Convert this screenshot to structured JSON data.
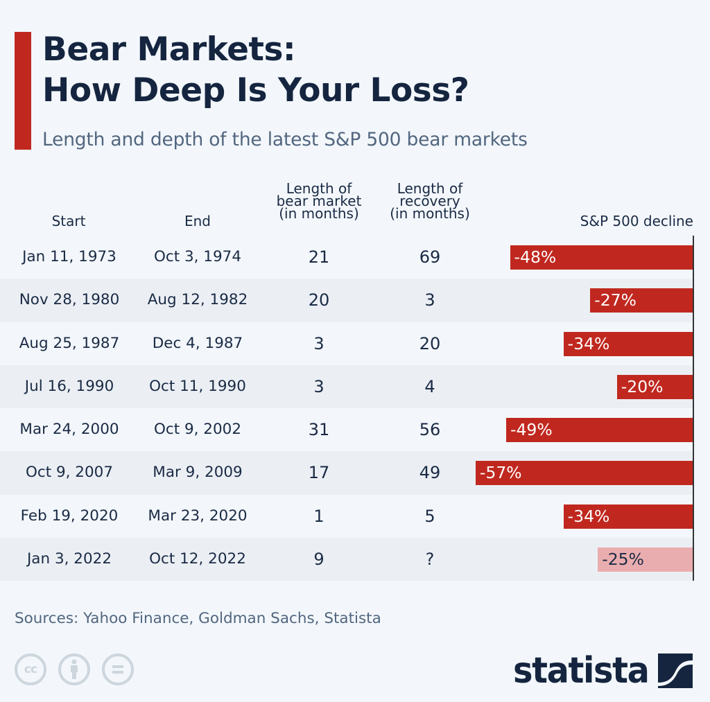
{
  "header": {
    "title_line1": "Bear Markets:",
    "title_line2": "How Deep Is Your Loss?",
    "subtitle": "Length and depth of the latest S&P 500 bear markets",
    "accent_color": "#c0281f"
  },
  "columns": {
    "start": "Start",
    "end": "End",
    "length_l1": "Length of",
    "length_l2": "bear market",
    "length_l3": "(in months)",
    "recovery_l1": "Length of",
    "recovery_l2": "recovery",
    "recovery_l3": "(in months)",
    "decline": "S&P 500 decline"
  },
  "rows": [
    {
      "start": "Jan 11, 1973",
      "end": "Oct 3, 1974",
      "length": "21",
      "recovery": "69",
      "decline": -48,
      "decline_label": "-48%"
    },
    {
      "start": "Nov 28, 1980",
      "end": "Aug 12, 1982",
      "length": "20",
      "recovery": "3",
      "decline": -27,
      "decline_label": "-27%"
    },
    {
      "start": "Aug 25, 1987",
      "end": "Dec 4, 1987",
      "length": "3",
      "recovery": "20",
      "decline": -34,
      "decline_label": "-34%"
    },
    {
      "start": "Jul 16, 1990",
      "end": "Oct 11, 1990",
      "length": "3",
      "recovery": "4",
      "decline": -20,
      "decline_label": "-20%"
    },
    {
      "start": "Mar 24, 2000",
      "end": "Oct 9, 2002",
      "length": "31",
      "recovery": "56",
      "decline": -49,
      "decline_label": "-49%"
    },
    {
      "start": "Oct 9, 2007",
      "end": "Mar 9, 2009",
      "length": "17",
      "recovery": "49",
      "decline": -57,
      "decline_label": "-57%"
    },
    {
      "start": "Feb 19, 2020",
      "end": "Mar 23, 2020",
      "length": "1",
      "recovery": "5",
      "decline": -34,
      "decline_label": "-34%"
    },
    {
      "start": "Jan 3, 2022",
      "end": "Oct 12, 2022",
      "length": "9",
      "recovery": "?",
      "decline": -25,
      "decline_label": "-25%",
      "pending": true
    }
  ],
  "chart_data": {
    "type": "bar",
    "orientation": "horizontal",
    "title": "Bear Markets: How Deep Is Your Loss?",
    "subtitle": "Length and depth of the latest S&P 500 bear markets",
    "xlabel": "S&P 500 decline",
    "ylabel": "",
    "categories": [
      "Jan 11, 1973",
      "Nov 28, 1980",
      "Aug 25, 1987",
      "Jul 16, 1990",
      "Mar 24, 2000",
      "Oct 9, 2007",
      "Feb 19, 2020",
      "Jan 3, 2022"
    ],
    "values": [
      -48,
      -27,
      -34,
      -20,
      -49,
      -57,
      -34,
      -25
    ],
    "value_unit": "%",
    "xlim": [
      -57,
      0
    ],
    "grid": false,
    "legend": "none",
    "bar_color": "#c0281f",
    "pending_bar_color": "#eaadaf"
  },
  "footer": {
    "sources": "Sources: Yahoo Finance, Goldman Sachs, Statista",
    "license_icons": [
      "cc-icon",
      "attribution-icon",
      "no-derivatives-icon"
    ],
    "cc_text": "cc",
    "logo_text": "statista"
  }
}
